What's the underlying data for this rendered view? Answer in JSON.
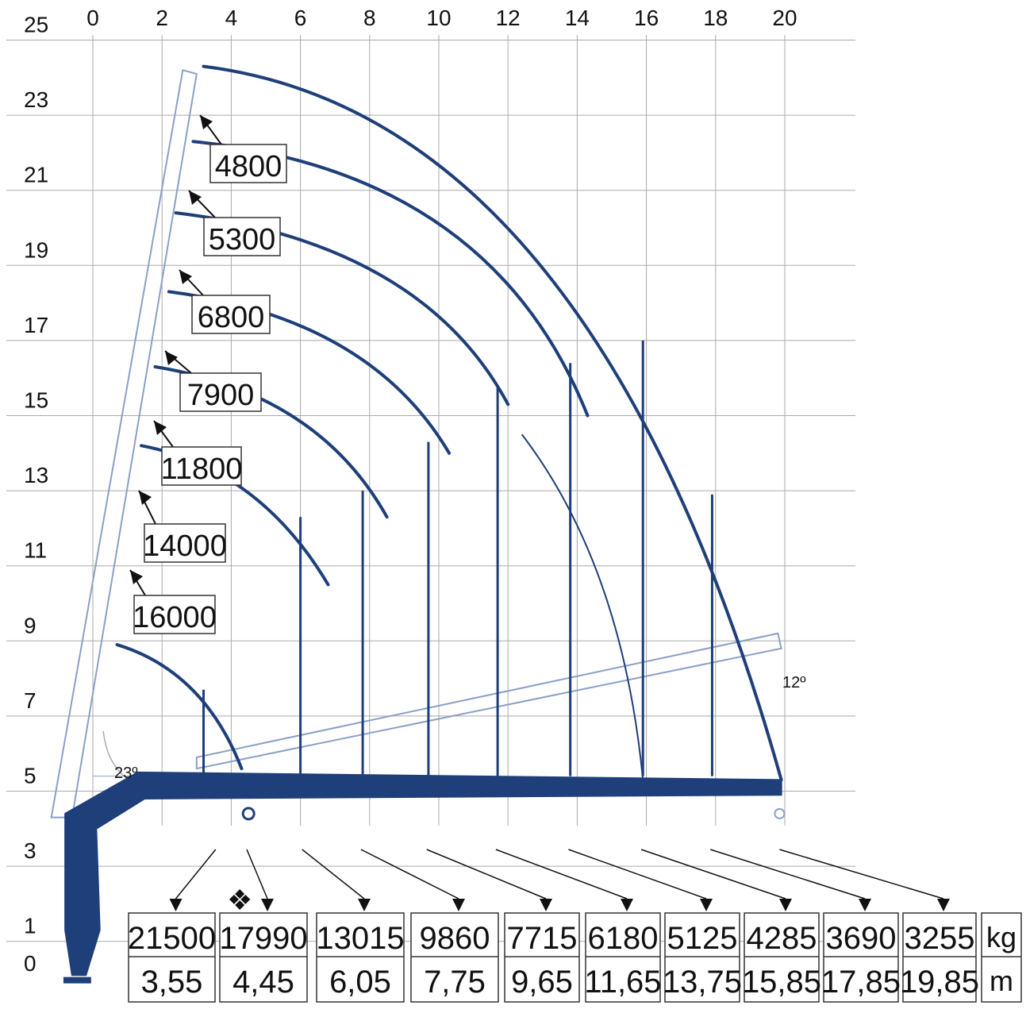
{
  "chart_data": {
    "type": "diagram",
    "title": "",
    "x_ticks": [
      "0",
      "2",
      "4",
      "6",
      "8",
      "10",
      "12",
      "14",
      "16",
      "18",
      "20"
    ],
    "y_ticks": [
      "25",
      "23",
      "21",
      "19",
      "17",
      "15",
      "13",
      "11",
      "9",
      "7",
      "5",
      "3",
      "1",
      "0"
    ],
    "xlim": [
      0,
      20
    ],
    "ylim": [
      0,
      25
    ],
    "grid": true,
    "angles": {
      "boom_max": "23º",
      "jib_min": "12º"
    },
    "load_labels": [
      {
        "name": "4800",
        "value": 4800,
        "outreach_m": 19.85
      },
      {
        "name": "5300",
        "value": 5300,
        "outreach_m": 15.0
      },
      {
        "name": "6800",
        "value": 6800,
        "outreach_m": 12.0
      },
      {
        "name": "7900",
        "value": 7900,
        "outreach_m": 10.3
      },
      {
        "name": "11800",
        "value": 11800,
        "outreach_m": 8.5
      },
      {
        "name": "14000",
        "value": 14000,
        "outreach_m": 6.8
      },
      {
        "name": "16000",
        "value": 16000,
        "outreach_m": 4.0
      }
    ],
    "table": {
      "loads": [
        "21500",
        "17990",
        "13015",
        "9860",
        "7715",
        "6180",
        "5125",
        "4285",
        "3690",
        "3255"
      ],
      "outreach": [
        "3,55",
        "4,45",
        "6,05",
        "7,75",
        "9,65",
        "11,65",
        "13,75",
        "15,85",
        "17,85",
        "19,85"
      ],
      "units": {
        "load": "kg",
        "outreach": "m"
      },
      "marker": "❖"
    },
    "colors": {
      "crane": "#1e3f7a",
      "grid": "#aaaaaa",
      "boom_outline": "#8aa0c8"
    }
  }
}
